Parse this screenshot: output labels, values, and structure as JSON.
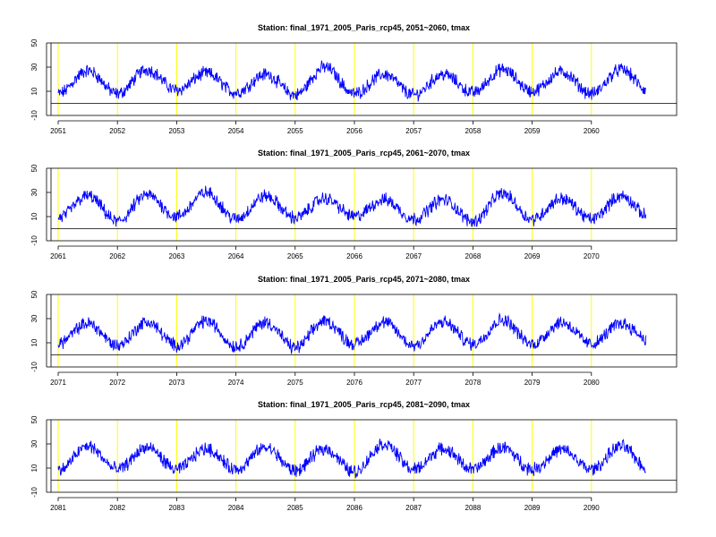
{
  "chart_data": [
    {
      "type": "line",
      "title": "Station: final_1971_2005_Paris_rcp45, 2051~2060,  tmax",
      "x_tick_labels": [
        "2051",
        "2052",
        "2053",
        "2054",
        "2055",
        "2056",
        "2057",
        "2058",
        "2059",
        "2060"
      ],
      "y_tick_labels": [
        "-10",
        "10",
        "30",
        "50"
      ],
      "yticks": [
        -10,
        10,
        30,
        50
      ],
      "ylim": [
        -10,
        50
      ],
      "xlim": [
        0,
        10
      ],
      "hline": 0,
      "vlines": [
        0,
        1,
        2,
        3,
        4,
        5,
        6,
        7,
        8,
        9
      ],
      "series": [
        {
          "color": "#0000ff",
          "x": [
            0,
            0.5,
            1,
            1.5,
            2,
            2.5,
            3,
            3.5,
            4,
            4.5,
            5,
            5.5,
            6,
            6.5,
            7,
            7.5,
            8,
            8.5,
            9,
            9.5,
            10
          ],
          "values": [
            8,
            27,
            8,
            28,
            11,
            25,
            9,
            24,
            7,
            30,
            8,
            24,
            7,
            24,
            9,
            28,
            10,
            26,
            8,
            28,
            9
          ]
        }
      ]
    },
    {
      "type": "line",
      "title": "Station: final_1971_2005_Paris_rcp45, 2061~2070,  tmax",
      "x_tick_labels": [
        "2061",
        "2062",
        "2063",
        "2064",
        "2065",
        "2066",
        "2067",
        "2068",
        "2069",
        "2070"
      ],
      "y_tick_labels": [
        "-10",
        "10",
        "30",
        "50"
      ],
      "yticks": [
        -10,
        10,
        30,
        50
      ],
      "ylim": [
        -10,
        50
      ],
      "xlim": [
        0,
        10
      ],
      "hline": 0,
      "vlines": [
        0,
        1,
        2,
        3,
        4,
        5,
        6,
        7,
        8,
        9
      ],
      "series": [
        {
          "color": "#0000ff",
          "x": [
            0,
            0.5,
            1,
            1.5,
            2,
            2.5,
            3,
            3.5,
            4,
            4.5,
            5,
            5.5,
            6,
            6.5,
            7,
            7.5,
            8,
            8.5,
            9,
            9.5,
            10
          ],
          "values": [
            9,
            27,
            6,
            28,
            10,
            30,
            8,
            27,
            9,
            25,
            10,
            24,
            8,
            24,
            6,
            29,
            8,
            25,
            8,
            27,
            9
          ]
        }
      ]
    },
    {
      "type": "line",
      "title": "Station: final_1971_2005_Paris_rcp45, 2071~2080,  tmax",
      "x_tick_labels": [
        "2071",
        "2072",
        "2073",
        "2074",
        "2075",
        "2076",
        "2077",
        "2078",
        "2079",
        "2080"
      ],
      "y_tick_labels": [
        "-10",
        "10",
        "30",
        "50"
      ],
      "yticks": [
        -10,
        10,
        30,
        50
      ],
      "ylim": [
        -10,
        50
      ],
      "xlim": [
        0,
        10
      ],
      "hline": 0,
      "vlines": [
        0,
        1,
        2,
        3,
        4,
        5,
        6,
        7,
        8,
        9
      ],
      "series": [
        {
          "color": "#0000ff",
          "x": [
            0,
            0.5,
            1,
            1.5,
            2,
            2.5,
            3,
            3.5,
            4,
            4.5,
            5,
            5.5,
            6,
            6.5,
            7,
            7.5,
            8,
            8.5,
            9,
            9.5,
            10
          ],
          "values": [
            10,
            26,
            8,
            27,
            8,
            28,
            7,
            27,
            6,
            28,
            9,
            27,
            8,
            27,
            9,
            29,
            9,
            27,
            9,
            26,
            12
          ]
        }
      ]
    },
    {
      "type": "line",
      "title": "Station: final_1971_2005_Paris_rcp45, 2081~2090,  tmax",
      "x_tick_labels": [
        "2081",
        "2082",
        "2083",
        "2084",
        "2085",
        "2086",
        "2087",
        "2088",
        "2089",
        "2090"
      ],
      "y_tick_labels": [
        "-10",
        "10",
        "30",
        "50"
      ],
      "yticks": [
        -10,
        10,
        30,
        50
      ],
      "ylim": [
        -10,
        50
      ],
      "xlim": [
        0,
        10
      ],
      "hline": 0,
      "vlines": [
        0,
        1,
        2,
        3,
        4,
        5,
        6,
        7,
        8,
        9
      ],
      "series": [
        {
          "color": "#0000ff",
          "x": [
            0,
            0.5,
            1,
            1.5,
            2,
            2.5,
            3,
            3.5,
            4,
            4.5,
            5,
            5.5,
            6,
            6.5,
            7,
            7.5,
            8,
            8.5,
            9,
            9.5,
            10
          ],
          "values": [
            8,
            28,
            9,
            27,
            9,
            26,
            9,
            27,
            8,
            26,
            7,
            30,
            9,
            26,
            9,
            27,
            9,
            25,
            9,
            28,
            8
          ]
        }
      ]
    }
  ],
  "colors": {
    "line": "#0000ff",
    "year_marker": "#ffff00",
    "axis": "#000000"
  }
}
